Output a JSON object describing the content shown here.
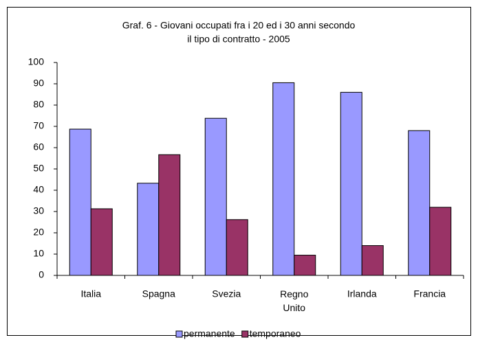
{
  "chart_data": {
    "type": "bar",
    "title": [
      "Graf. 6 - Giovani occupati fra i 20 ed i 30 anni secondo",
      "il tipo di contratto - 2005"
    ],
    "categories": [
      "Italia",
      "Spagna",
      "Svezia",
      "Regno Unito",
      "Irlanda",
      "Francia"
    ],
    "series": [
      {
        "name": "permanente",
        "color": "#9999ff",
        "values": [
          68.7,
          43.3,
          73.8,
          90.5,
          86,
          68
        ]
      },
      {
        "name": "temporaneo",
        "color": "#993366",
        "values": [
          31.3,
          56.7,
          26.2,
          9.5,
          14,
          32
        ]
      }
    ],
    "ylim": [
      0,
      100
    ],
    "yticks": [
      0,
      10,
      20,
      30,
      40,
      50,
      60,
      70,
      80,
      90,
      100
    ],
    "grid": false,
    "legend": "bottom"
  }
}
